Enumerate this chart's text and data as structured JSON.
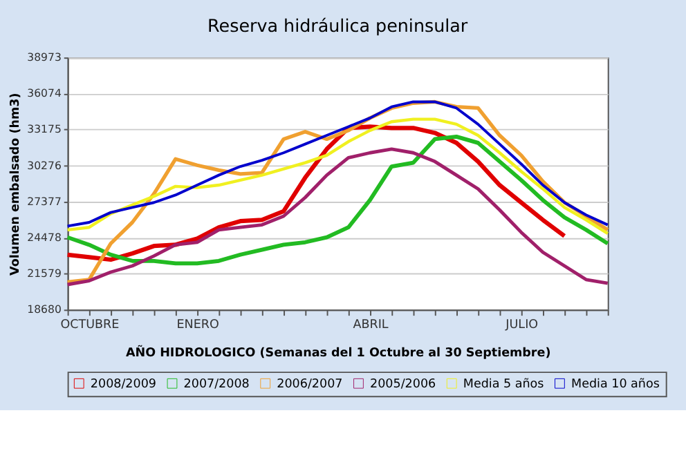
{
  "chart_data": {
    "type": "line",
    "title": "Reserva hidráulica peninsular",
    "xlabel": "AÑO HIDROLOGICO  (Semanas del 1 Octubre al 30 Septiembre)",
    "ylabel": "Volumen  embalsado   (hm3)",
    "categories": [
      null,
      "OCTUBRE",
      null,
      null,
      null,
      null,
      "ENERO",
      null,
      null,
      null,
      null,
      null,
      null,
      null,
      "ABRIL",
      null,
      null,
      null,
      null,
      null,
      null,
      "JULIO",
      null,
      null,
      null,
      null
    ],
    "ylim": [
      18680,
      38973
    ],
    "yticks": [
      18680,
      21579,
      24478,
      27377,
      30276,
      33175,
      36074,
      38973
    ],
    "grid": "y",
    "legend": "bottom",
    "marker": "none",
    "line_style": "solid",
    "series": [
      {
        "name": "2008/2009",
        "color": "#e00000",
        "values": [
          23100,
          22900,
          22700,
          23200,
          23800,
          23900,
          24400,
          25300,
          25800,
          25900,
          26600,
          29300,
          31600,
          33300,
          33400,
          33300,
          33300,
          32900,
          32100,
          30600,
          28700,
          27300,
          25900,
          24600,
          null,
          null
        ]
      },
      {
        "name": "2007/2008",
        "color": "#22bb22",
        "values": [
          24500,
          23900,
          23100,
          22600,
          22600,
          22400,
          22400,
          22600,
          23100,
          23500,
          23900,
          24100,
          24500,
          25300,
          27500,
          30200,
          30500,
          32400,
          32600,
          32100,
          30600,
          29100,
          27500,
          26100,
          25100,
          24000
        ]
      },
      {
        "name": "2006/2007",
        "color": "#f0a030",
        "values": [
          20900,
          21100,
          24000,
          25700,
          28000,
          30800,
          30300,
          29900,
          29600,
          29700,
          32400,
          33000,
          32400,
          33100,
          34100,
          34900,
          35300,
          35400,
          35000,
          34900,
          32700,
          31100,
          29000,
          27300,
          26200,
          25100
        ]
      },
      {
        "name": "2005/2006",
        "color": "#a0206a",
        "values": [
          20700,
          21000,
          21700,
          22200,
          23000,
          23900,
          24100,
          25100,
          25300,
          25500,
          26200,
          27700,
          29500,
          30900,
          31300,
          31600,
          31300,
          30600,
          29500,
          28400,
          26700,
          24900,
          23300,
          22200,
          21100,
          20800
        ]
      },
      {
        "name": "Media 5 años",
        "color": "#f0f020",
        "values": [
          25100,
          25300,
          26400,
          27100,
          27800,
          28600,
          28500,
          28700,
          29100,
          29500,
          30000,
          30500,
          31100,
          32200,
          33100,
          33800,
          34000,
          34000,
          33600,
          32700,
          31300,
          29800,
          28400,
          26900,
          25900,
          24800
        ]
      },
      {
        "name": "Media 10 años",
        "color": "#0000cc",
        "values": [
          25400,
          25700,
          26500,
          26900,
          27300,
          27900,
          28700,
          29500,
          30200,
          30700,
          31300,
          32000,
          32700,
          33400,
          34100,
          35000,
          35400,
          35400,
          34900,
          33600,
          32000,
          30400,
          28700,
          27300,
          26300,
          25500
        ]
      }
    ]
  }
}
